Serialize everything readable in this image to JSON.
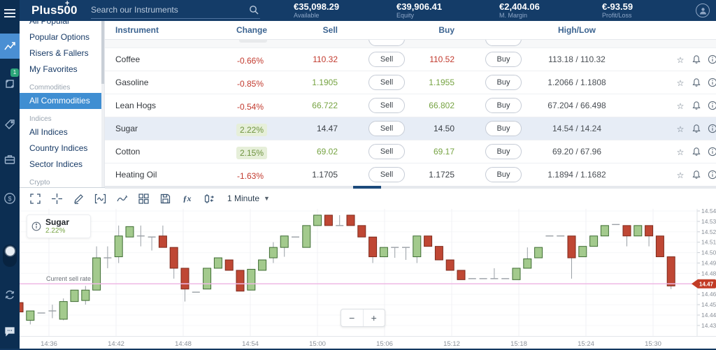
{
  "topbar": {
    "logo_part1": "Plus",
    "logo_part2": "500",
    "logo_plus": "+",
    "search_placeholder": "Search our Instruments",
    "stats": [
      {
        "value": "€35,098.29",
        "label": "Available"
      },
      {
        "value": "€39,906.41",
        "label": "Equity"
      },
      {
        "value": "€2,404.06",
        "label": "M. Margin"
      },
      {
        "value": "€-93.59",
        "label": "Profit/Loss"
      }
    ]
  },
  "rail": {
    "positions_badge": "1"
  },
  "sidebar": {
    "items": [
      {
        "label": "All Popular",
        "type": "item"
      },
      {
        "label": "Popular Options",
        "type": "item"
      },
      {
        "label": "Risers & Fallers",
        "type": "item"
      },
      {
        "label": "My Favorites",
        "type": "item"
      },
      {
        "label": "Commodities",
        "type": "section"
      },
      {
        "label": "All Commodities",
        "type": "item",
        "selected": true
      },
      {
        "label": "Indices",
        "type": "section"
      },
      {
        "label": "All Indices",
        "type": "item"
      },
      {
        "label": "Country Indices",
        "type": "item"
      },
      {
        "label": "Sector Indices",
        "type": "item"
      },
      {
        "label": "Crypto",
        "type": "section"
      }
    ]
  },
  "instrument_table": {
    "columns": {
      "instrument": "Instrument",
      "change": "Change",
      "sell": "Sell",
      "buy": "Buy",
      "highlow": "High/Low"
    },
    "sell_button": "Sell",
    "buy_button": "Buy",
    "rows": [
      {
        "instrument": "Coffee",
        "change": "-0.66%",
        "change_dir": "down",
        "sell": "110.32",
        "buy": "110.52",
        "price_color": "red",
        "highlow": "113.18 / 110.32",
        "selected": false
      },
      {
        "instrument": "Gasoline",
        "change": "-0.85%",
        "change_dir": "down",
        "sell": "1.1905",
        "buy": "1.1955",
        "price_color": "green",
        "highlow": "1.2066 / 1.1808",
        "selected": false
      },
      {
        "instrument": "Lean Hogs",
        "change": "-0.54%",
        "change_dir": "down",
        "sell": "66.722",
        "buy": "66.802",
        "price_color": "green",
        "highlow": "67.204 / 66.498",
        "selected": false
      },
      {
        "instrument": "Sugar",
        "change": "2.22%",
        "change_dir": "up",
        "sell": "14.47",
        "buy": "14.50",
        "price_color": "dark",
        "highlow": "14.54 / 14.24",
        "selected": true
      },
      {
        "instrument": "Cotton",
        "change": "2.15%",
        "change_dir": "up",
        "sell": "69.02",
        "buy": "69.17",
        "price_color": "green",
        "highlow": "69.20 / 67.96",
        "selected": false
      },
      {
        "instrument": "Heating Oil",
        "change": "-1.63%",
        "change_dir": "down",
        "sell": "1.1705",
        "buy": "1.1725",
        "price_color": "dark",
        "highlow": "1.1894 / 1.1682",
        "selected": false
      }
    ]
  },
  "chart_toolbar": {
    "timeframe": "1 Minute",
    "chevron": "▼"
  },
  "chart_data": {
    "type": "candlestick",
    "instrument": "Sugar",
    "change_pct": "2.22%",
    "current_sell_rate_label": "Current sell rate",
    "current_sell_rate": 14.47,
    "zoom_out_label": "−",
    "zoom_in_label": "+",
    "y_axis": {
      "min": 14.43,
      "max": 14.54,
      "tick_step": 0.01,
      "tick_labels": [
        "14.54",
        "14.53",
        "14.52",
        "14.51",
        "14.50",
        "14.49",
        "14.48",
        "14.47",
        "14.46",
        "14.45",
        "14.44",
        "14.43"
      ]
    },
    "x_ticks": [
      "14:36",
      "14:42",
      "14:48",
      "14:54",
      "15:00",
      "15:06",
      "15:12",
      "15:18",
      "15:24",
      "15:30"
    ],
    "colors": {
      "up": "#a3ca8d",
      "up_border": "#3f6d34",
      "down": "#bf4734",
      "down_border": "#7e2a1c",
      "doji": "#9aa0a6",
      "rate_line": "#efb8e4",
      "rate_tag": "#c23b25"
    },
    "candles_ohlc": [
      [
        14.452,
        14.452,
        14.443,
        14.443
      ],
      [
        14.435,
        14.444,
        14.431,
        14.444
      ],
      [
        14.442,
        14.442,
        14.442,
        14.442
      ],
      [
        14.444,
        14.45,
        14.437,
        14.444
      ],
      [
        14.436,
        14.456,
        14.435,
        14.453
      ],
      [
        14.453,
        14.464,
        14.453,
        14.464
      ],
      [
        14.454,
        14.468,
        14.45,
        14.464
      ],
      [
        14.464,
        14.506,
        14.464,
        14.495
      ],
      [
        14.495,
        14.506,
        14.485,
        14.495
      ],
      [
        14.496,
        14.526,
        14.49,
        14.516
      ],
      [
        14.515,
        14.525,
        14.515,
        14.525
      ],
      [
        14.516,
        14.526,
        14.506,
        14.516
      ],
      [
        14.515,
        14.515,
        14.502,
        14.515
      ],
      [
        14.516,
        14.526,
        14.505,
        14.505
      ],
      [
        14.505,
        14.505,
        14.475,
        14.485
      ],
      [
        14.485,
        14.485,
        14.453,
        14.465
      ],
      [
        14.462,
        14.462,
        14.462,
        14.462
      ],
      [
        14.465,
        14.485,
        14.465,
        14.485
      ],
      [
        14.485,
        14.495,
        14.485,
        14.495
      ],
      [
        14.493,
        14.493,
        14.483,
        14.483
      ],
      [
        14.483,
        14.483,
        14.463,
        14.463
      ],
      [
        14.464,
        14.484,
        14.464,
        14.484
      ],
      [
        14.483,
        14.493,
        14.483,
        14.493
      ],
      [
        14.495,
        14.51,
        14.49,
        14.505
      ],
      [
        14.505,
        14.516,
        14.496,
        14.516
      ],
      [
        14.515,
        14.515,
        14.515,
        14.515
      ],
      [
        14.505,
        14.526,
        14.505,
        14.526
      ],
      [
        14.526,
        14.536,
        14.526,
        14.536
      ],
      [
        14.536,
        14.536,
        14.526,
        14.526
      ],
      [
        14.526,
        14.536,
        14.526,
        14.526
      ],
      [
        14.536,
        14.536,
        14.526,
        14.526
      ],
      [
        14.526,
        14.526,
        14.515,
        14.515
      ],
      [
        14.515,
        14.515,
        14.49,
        14.496
      ],
      [
        14.496,
        14.505,
        14.496,
        14.505
      ],
      [
        14.505,
        14.505,
        14.495,
        14.505
      ],
      [
        14.505,
        14.505,
        14.493,
        14.505
      ],
      [
        14.496,
        14.516,
        14.49,
        14.516
      ],
      [
        14.516,
        14.516,
        14.506,
        14.506
      ],
      [
        14.506,
        14.506,
        14.493,
        14.493
      ],
      [
        14.493,
        14.493,
        14.483,
        14.483
      ],
      [
        14.483,
        14.483,
        14.474,
        14.474
      ],
      [
        14.475,
        14.475,
        14.475,
        14.475
      ],
      [
        14.475,
        14.475,
        14.475,
        14.475
      ],
      [
        14.475,
        14.485,
        14.475,
        14.475
      ],
      [
        14.475,
        14.475,
        14.475,
        14.475
      ],
      [
        14.474,
        14.485,
        14.474,
        14.485
      ],
      [
        14.485,
        14.505,
        14.485,
        14.494
      ],
      [
        14.495,
        14.505,
        14.495,
        14.505
      ],
      [
        14.516,
        14.516,
        14.516,
        14.516
      ],
      [
        14.516,
        14.516,
        14.516,
        14.516
      ],
      [
        14.516,
        14.516,
        14.475,
        14.495
      ],
      [
        14.496,
        14.506,
        14.496,
        14.506
      ],
      [
        14.506,
        14.516,
        14.506,
        14.516
      ],
      [
        14.516,
        14.526,
        14.516,
        14.526
      ],
      [
        14.527,
        14.527,
        14.527,
        14.527
      ],
      [
        14.526,
        14.526,
        14.506,
        14.516
      ],
      [
        14.516,
        14.526,
        14.516,
        14.526
      ],
      [
        14.526,
        14.526,
        14.506,
        14.516
      ],
      [
        14.516,
        14.516,
        14.496,
        14.496
      ],
      [
        14.496,
        14.496,
        14.465,
        14.468
      ]
    ]
  }
}
